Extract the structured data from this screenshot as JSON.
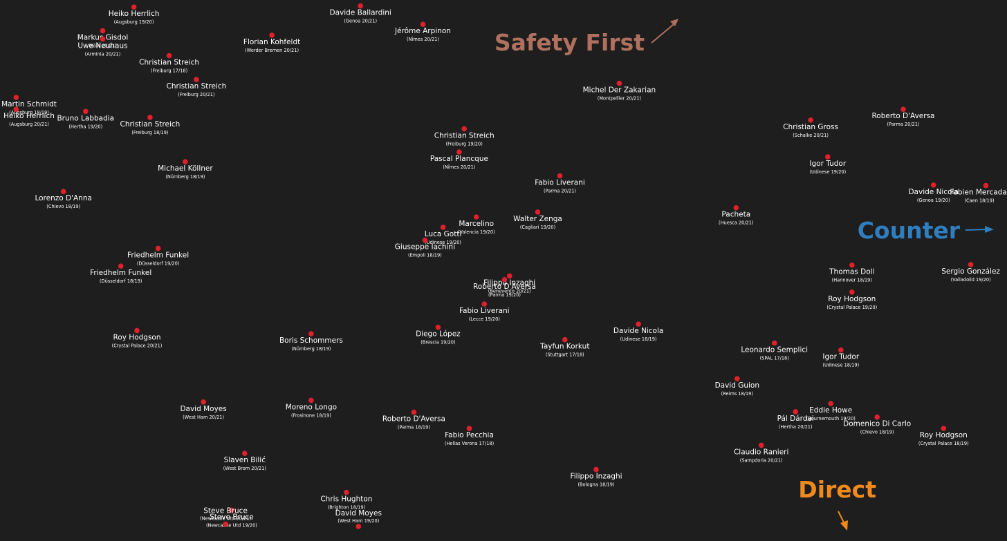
{
  "chart_data": {
    "type": "scatter",
    "title": "",
    "xlabel": "",
    "ylabel": "",
    "grid": false,
    "xlim": [
      0,
      100
    ],
    "ylim": [
      0,
      100
    ],
    "colors": {
      "background": "#1e1e1e",
      "point": "#e0202a",
      "label": "#ffffff",
      "safety_first": "#b0705e",
      "counter": "#2f7fc0",
      "direct": "#ef8a1e"
    },
    "corner_labels": [
      {
        "text": "Safety First",
        "arrow": "up-right",
        "color": "#b0705e"
      },
      {
        "text": "Counter",
        "arrow": "right",
        "color": "#2f7fc0"
      },
      {
        "text": "Direct",
        "arrow": "down-right",
        "color": "#ef8a1e"
      }
    ],
    "points": [
      {
        "name": "Heiko Herrlich",
        "club": "(Augsburg 19/20)",
        "x": 13.3,
        "y": 98.7
      },
      {
        "name": "Markus Gisdol",
        "club": "(Köln 20/21)",
        "x": 10.2,
        "y": 94.3
      },
      {
        "name": "Uwe Neuhaus",
        "club": "(Arminia 20/21)",
        "x": 10.2,
        "y": 92.8
      },
      {
        "name": "Christian Streich",
        "club": "(Freiburg 17/18)",
        "x": 16.8,
        "y": 89.7
      },
      {
        "name": "Christian Streich",
        "club": "(Freiburg 20/21)",
        "x": 19.5,
        "y": 85.3
      },
      {
        "name": "Martin Schmidt",
        "club": "(Augsburg 18/19)",
        "x": 1.6,
        "y": 82.0
      },
      {
        "name": "Heiko Herrlich",
        "club": "(Augsburg 20/21)",
        "x": 1.6,
        "y": 79.8
      },
      {
        "name": "Bruno Labbadia",
        "club": "(Hertha 19/20)",
        "x": 8.5,
        "y": 79.4
      },
      {
        "name": "Christian Streich",
        "club": "(Freiburg 18/19)",
        "x": 14.9,
        "y": 78.3
      },
      {
        "name": "Michael Köllner",
        "club": "(Nürnberg 18/19)",
        "x": 18.4,
        "y": 70.1
      },
      {
        "name": "Lorenzo D'Anna",
        "club": "(Chievo 18/19)",
        "x": 6.3,
        "y": 64.6
      },
      {
        "name": "Friedhelm Funkel",
        "club": "(Düsseldorf 19/20)",
        "x": 15.7,
        "y": 54.1
      },
      {
        "name": "Friedhelm Funkel",
        "club": "(Düsseldorf 18/19)",
        "x": 12.0,
        "y": 50.8
      },
      {
        "name": "Roy Hodgson",
        "club": "(Crystal Palace 20/21)",
        "x": 13.6,
        "y": 38.9
      },
      {
        "name": "Davide Ballardini",
        "club": "(Genoa 20/21)",
        "x": 35.8,
        "y": 98.9
      },
      {
        "name": "Jérôme Arpinon",
        "club": "(Nîmes 20/21)",
        "x": 42.0,
        "y": 95.5
      },
      {
        "name": "Florian Kohfeldt",
        "club": "(Werder Bremen 20/21)",
        "x": 27.0,
        "y": 93.5
      },
      {
        "name": "Michel Der Zakarian",
        "club": "(Montpellier 20/21)",
        "x": 61.5,
        "y": 84.6
      },
      {
        "name": "Christian Streich",
        "club": "(Freiburg 19/20)",
        "x": 46.1,
        "y": 76.2
      },
      {
        "name": "Pascal Plancque",
        "club": "(Nîmes 20/21)",
        "x": 45.6,
        "y": 71.9
      },
      {
        "name": "Fabio Liverani",
        "club": "(Parma 20/21)",
        "x": 55.6,
        "y": 67.5
      },
      {
        "name": "Luca Gotti",
        "club": "(Udinese 19/20)",
        "x": 44.0,
        "y": 58.0
      },
      {
        "name": "Marcelino",
        "club": "(Valencia 19/20)",
        "x": 47.3,
        "y": 59.9
      },
      {
        "name": "Walter Zenga",
        "club": "(Cagliari 19/20)",
        "x": 53.4,
        "y": 60.8
      },
      {
        "name": "Giuseppe Iachini",
        "club": "(Empoli 18/19)",
        "x": 42.2,
        "y": 55.6
      },
      {
        "name": "Filippo Inzaghi",
        "club": "(Benevento 20/21)",
        "x": 50.6,
        "y": 49.0
      },
      {
        "name": "Roberto D'Aversa",
        "club": "(Parma 19/20)",
        "x": 50.1,
        "y": 48.3
      },
      {
        "name": "Fabio Liverani",
        "club": "(Lecce 19/20)",
        "x": 48.1,
        "y": 43.8
      },
      {
        "name": "Diego López",
        "club": "(Brescia 19/20)",
        "x": 43.5,
        "y": 39.5
      },
      {
        "name": "Boris Schommers",
        "club": "(Nürnberg 18/19)",
        "x": 30.9,
        "y": 38.3
      },
      {
        "name": "Tayfun Korkut",
        "club": "(Stuttgart 17/18)",
        "x": 56.1,
        "y": 37.2
      },
      {
        "name": "Davide Nicola",
        "club": "(Udinese 18/19)",
        "x": 63.4,
        "y": 40.1
      },
      {
        "name": "Christian Gross",
        "club": "(Schalke 20/21)",
        "x": 80.5,
        "y": 77.8
      },
      {
        "name": "Roberto D'Aversa",
        "club": "(Parma 20/21)",
        "x": 89.7,
        "y": 79.8
      },
      {
        "name": "Igor Tudor",
        "club": "(Udinese 19/20)",
        "x": 82.2,
        "y": 71.0
      },
      {
        "name": "Davide Nicola",
        "club": "(Genoa 19/20)",
        "x": 92.7,
        "y": 65.8
      },
      {
        "name": "Fabien Mercadal",
        "club": "(Caen 18/19)",
        "x": 97.9,
        "y": 65.7
      },
      {
        "name": "Pacheta",
        "club": "(Huesca 20/21)",
        "x": 73.1,
        "y": 61.6
      },
      {
        "name": "Thomas Doll",
        "club": "(Hannover 18/19)",
        "x": 84.6,
        "y": 51.0
      },
      {
        "name": "Sergio González",
        "club": "(Valladolid 19/20)",
        "x": 96.4,
        "y": 51.1
      },
      {
        "name": "Roy Hodgson",
        "club": "(Crystal Palace 19/20)",
        "x": 84.6,
        "y": 46.0
      },
      {
        "name": "Leonardo Semplici",
        "club": "(SPAL 17/18)",
        "x": 76.9,
        "y": 36.6
      },
      {
        "name": "Igor Tudor",
        "club": "(Udinese 18/19)",
        "x": 83.5,
        "y": 35.3
      },
      {
        "name": "David Guion",
        "club": "(Reims 18/19)",
        "x": 73.2,
        "y": 30.0
      },
      {
        "name": "Eddie Howe",
        "club": "(Bournemouth 19/20)",
        "x": 82.5,
        "y": 25.4
      },
      {
        "name": "Pál Dárdai",
        "club": "(Hertha 20/21)",
        "x": 79.0,
        "y": 23.9
      },
      {
        "name": "Domenico Di Carlo",
        "club": "(Chievo 18/19)",
        "x": 87.1,
        "y": 22.9
      },
      {
        "name": "Roy Hodgson",
        "club": "(Crystal Palace 18/19)",
        "x": 93.7,
        "y": 20.8
      },
      {
        "name": "Claudio Ranieri",
        "club": "(Sampdoria 20/21)",
        "x": 75.6,
        "y": 17.7
      },
      {
        "name": "David Moyes",
        "club": "(West Ham 20/21)",
        "x": 20.2,
        "y": 25.7
      },
      {
        "name": "Moreno Longo",
        "club": "(Frosinone 18/19)",
        "x": 30.9,
        "y": 26.0
      },
      {
        "name": "Roberto D'Aversa",
        "club": "(Parma 18/19)",
        "x": 41.1,
        "y": 23.8
      },
      {
        "name": "Fabio Pecchia",
        "club": "(Hellas Verona 17/18)",
        "x": 46.6,
        "y": 20.8
      },
      {
        "name": "Slaven Bilić",
        "club": "(West Brom 20/21)",
        "x": 24.3,
        "y": 16.2
      },
      {
        "name": "Filippo Inzaghi",
        "club": "(Bologna 18/19)",
        "x": 59.2,
        "y": 13.2
      },
      {
        "name": "Chris Hughton",
        "club": "(Brighton 18/19)",
        "x": 34.4,
        "y": 9.0
      },
      {
        "name": "Steve Bruce",
        "club": "(Newcastle Utd 19/20)",
        "x": 23.0,
        "y": 5.7
      },
      {
        "name": "Steve Bruce",
        "club": "(Newcastle Utd 20/21)",
        "x": 22.4,
        "y": 3.1
      },
      {
        "name": "David Moyes",
        "club": "(West Ham 19/20)",
        "x": 35.6,
        "y": 2.7
      }
    ]
  }
}
